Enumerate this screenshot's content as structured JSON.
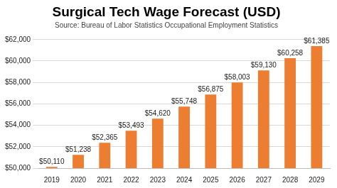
{
  "chart_data": {
    "type": "bar",
    "title": "Surgical Tech Wage Forecast (USD)",
    "subtitle": "Source: Bureau of Labor Statistics Occupational Employment Statistics",
    "categories": [
      "2019",
      "2020",
      "2021",
      "2022",
      "2023",
      "2024",
      "2025",
      "2026",
      "2027",
      "2028",
      "2029"
    ],
    "values": [
      50110,
      51238,
      52365,
      53493,
      54620,
      55748,
      56875,
      58003,
      59130,
      60258,
      61385
    ],
    "value_labels": [
      "$50,110",
      "$51,238",
      "$52,365",
      "$53,493",
      "$54,620",
      "$55,748",
      "$56,875",
      "$58,003",
      "$59,130",
      "$60,258",
      "$61,385"
    ],
    "color": "#ed7d31",
    "ylim": [
      50000,
      62000
    ],
    "yticks": [
      {
        "value": 50000,
        "label": "$50,000"
      },
      {
        "value": 52000,
        "label": "$52,000"
      },
      {
        "value": 54000,
        "label": "$54,000"
      },
      {
        "value": 56000,
        "label": "$56,000"
      },
      {
        "value": 58000,
        "label": "$58,000"
      },
      {
        "value": 60000,
        "label": "$60,000"
      },
      {
        "value": 62000,
        "label": "$62,000"
      }
    ],
    "grid": true,
    "data_labels": true
  }
}
